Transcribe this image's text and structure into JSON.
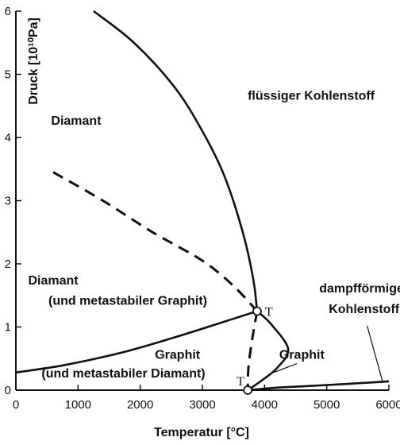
{
  "chart_data": {
    "type": "line",
    "xlabel": "Temperatur [°C]",
    "ylabel": "Druck [10¹⁰Pa]",
    "xlim": [
      0,
      6000
    ],
    "ylim": [
      0,
      6
    ],
    "xticks": [
      "0",
      "1000",
      "2000",
      "3000",
      "4000",
      "5000",
      "6000"
    ],
    "yticks": [
      "0",
      "1",
      "2",
      "3",
      "4",
      "5",
      "6"
    ],
    "grid": false,
    "series": [
      {
        "style": "solid",
        "points": [
          [
            1250,
            6.0
          ],
          [
            1900,
            5.5
          ],
          [
            2550,
            4.8
          ],
          [
            3000,
            4.1
          ],
          [
            3350,
            3.4
          ],
          [
            3650,
            2.5
          ],
          [
            3820,
            1.75
          ],
          [
            3880,
            1.25
          ]
        ]
      },
      {
        "style": "solid",
        "points": [
          [
            0,
            0.28
          ],
          [
            800,
            0.4
          ],
          [
            1800,
            0.62
          ],
          [
            2700,
            0.88
          ],
          [
            3400,
            1.1
          ],
          [
            3880,
            1.25
          ]
        ]
      },
      {
        "style": "dashed",
        "points": [
          [
            600,
            3.45
          ],
          [
            1400,
            3.0
          ],
          [
            2200,
            2.5
          ],
          [
            3000,
            2.05
          ],
          [
            3500,
            1.65
          ],
          [
            3880,
            1.25
          ]
        ]
      },
      {
        "style": "dashed",
        "points": [
          [
            3880,
            1.25
          ],
          [
            3800,
            0.8
          ],
          [
            3740,
            0.35
          ],
          [
            3730,
            0.0
          ]
        ]
      },
      {
        "style": "solid",
        "points": [
          [
            3880,
            1.25
          ],
          [
            4100,
            1.05
          ],
          [
            4380,
            0.65
          ],
          [
            4200,
            0.35
          ],
          [
            3950,
            0.15
          ],
          [
            3730,
            0.0
          ]
        ]
      },
      {
        "style": "solid",
        "points": [
          [
            3730,
            0.0
          ],
          [
            4200,
            0.04
          ],
          [
            5000,
            0.08
          ],
          [
            6000,
            0.14
          ]
        ]
      }
    ],
    "points": [
      {
        "label": "T",
        "x": 3880,
        "y": 1.25
      },
      {
        "label": "T",
        "x": 3730,
        "y": 0.0
      }
    ],
    "annotations": [
      {
        "text": "Diamant",
        "x": 970,
        "y": 4.2
      },
      {
        "text": "flüssiger Kohlenstoff",
        "x": 4750,
        "y": 4.6
      },
      {
        "text": "Diamant",
        "x": 600,
        "y": 1.67
      },
      {
        "text": "(und metastabiler Graphit)",
        "x": 1800,
        "y": 1.35
      },
      {
        "text": "Graphit",
        "x": 2600,
        "y": 0.5
      },
      {
        "text": "(und metastabiler Diamant)",
        "x": 1730,
        "y": 0.2
      },
      {
        "text": "Graphit",
        "x": 4600,
        "y": 0.5
      },
      {
        "text": "dampfförmiger",
        "x": 5600,
        "y": 1.55
      },
      {
        "text": "Kohlenstoff",
        "x": 5600,
        "y": 1.22
      }
    ]
  }
}
